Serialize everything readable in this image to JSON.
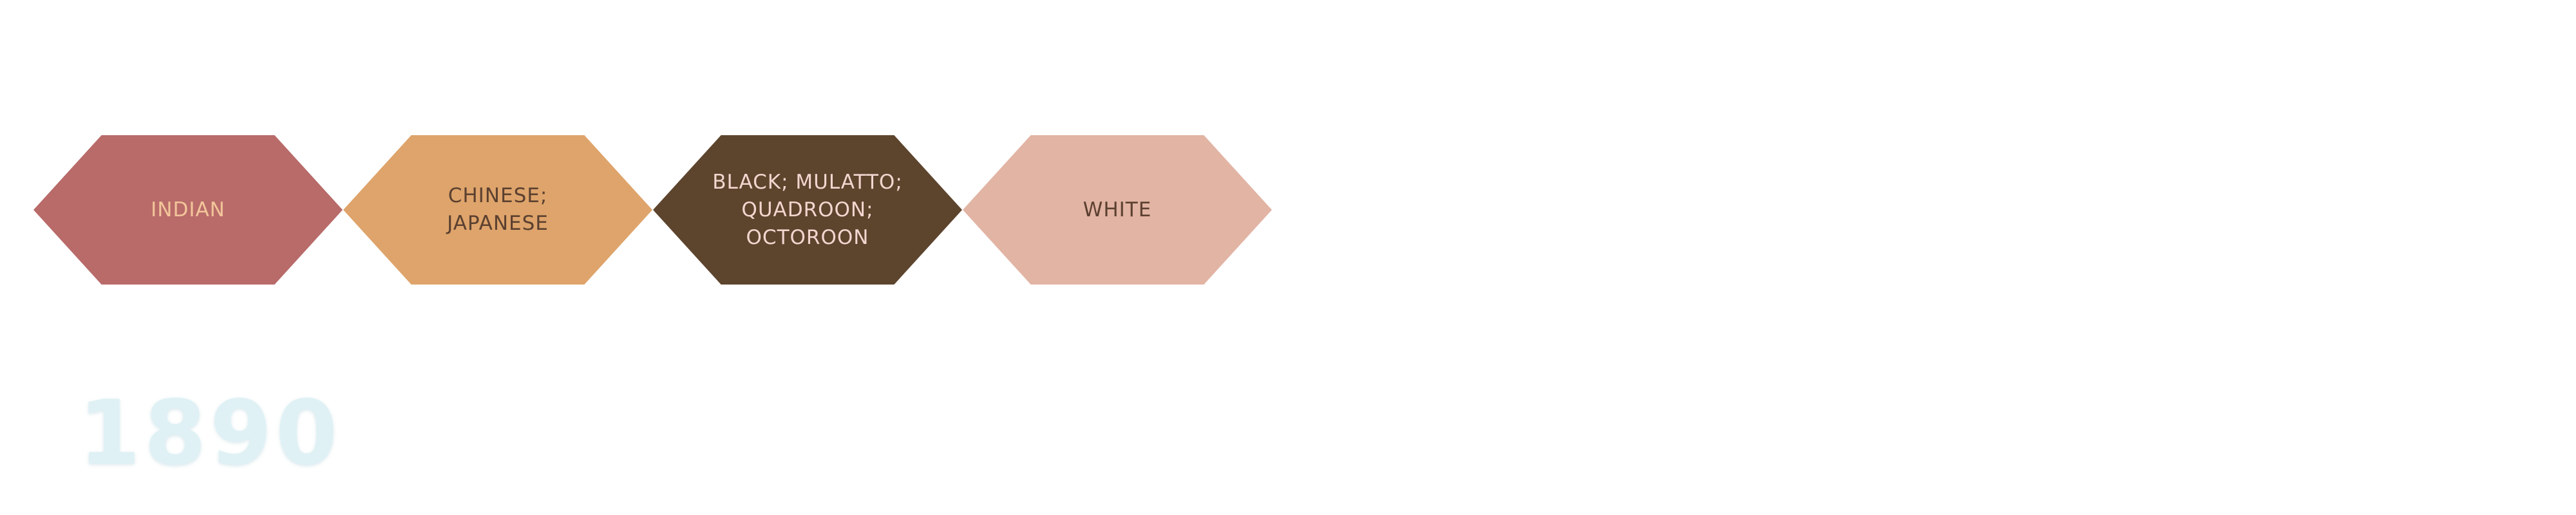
{
  "categories": [
    {
      "label": "INDIAN",
      "fill": "#b86b69",
      "text_color": "#f3c59a"
    },
    {
      "label": "CHINESE; JAPANESE",
      "fill": "#dea46b",
      "text_color": "#5b4030"
    },
    {
      "label": "BLACK; MULATTO; QUADROON; OCTOROON",
      "fill": "#5d442d",
      "text_color": "#f2d6cf"
    },
    {
      "label": "WHITE",
      "fill": "#e2b4a4",
      "text_color": "#5b4030"
    }
  ],
  "year": "1890",
  "year_color": "#dff1f5"
}
